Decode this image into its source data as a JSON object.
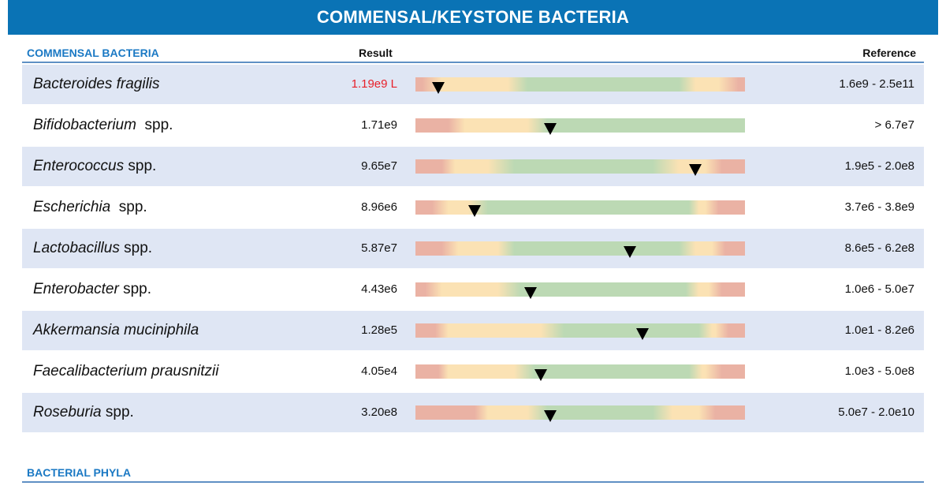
{
  "banner": {
    "title": "COMMENSAL/KEYSTONE BACTERIA"
  },
  "section": {
    "title": "COMMENSAL BACTERIA",
    "result_header": "Result",
    "reference_header": "Reference"
  },
  "rows": [
    {
      "genus": "Bacteroides fragilis",
      "suffix": "",
      "result": "1.19e9 L",
      "flag": "low",
      "reference": "1.6e9 - 2.5e11",
      "gauge_level": 0.07,
      "zones": [
        [
          "red",
          0,
          0.02
        ],
        [
          "yellow",
          0.08,
          0.28
        ],
        [
          "green",
          0.34,
          0.8
        ],
        [
          "yellow",
          0.85,
          0.92
        ],
        [
          "red",
          0.98,
          1
        ]
      ]
    },
    {
      "genus": "Bifidobacterium",
      "suffix": "  spp.",
      "result": "1.71e9",
      "flag": "",
      "reference": "> 6.7e7",
      "gauge_level": 0.41,
      "zones": [
        [
          "red",
          0,
          0.1
        ],
        [
          "yellow",
          0.15,
          0.34
        ],
        [
          "green",
          0.4,
          1
        ]
      ]
    },
    {
      "genus": "Enterococcus",
      "suffix": " spp.",
      "result": "9.65e7",
      "flag": "",
      "reference": "1.9e5 - 2.0e8",
      "gauge_level": 0.85,
      "zones": [
        [
          "red",
          0,
          0.08
        ],
        [
          "yellow",
          0.12,
          0.22
        ],
        [
          "green",
          0.3,
          0.72
        ],
        [
          "yellow",
          0.8,
          0.88
        ],
        [
          "red",
          0.93,
          1
        ]
      ]
    },
    {
      "genus": "Escherichia",
      "suffix": "  spp.",
      "result": "8.96e6",
      "flag": "",
      "reference": "3.7e6 - 3.8e9",
      "gauge_level": 0.18,
      "zones": [
        [
          "red",
          0,
          0.05
        ],
        [
          "yellow",
          0.1,
          0.16
        ],
        [
          "green",
          0.22,
          0.83
        ],
        [
          "yellow",
          0.86,
          0.88
        ],
        [
          "red",
          0.92,
          1
        ]
      ]
    },
    {
      "genus": "Lactobacillus",
      "suffix": " spp.",
      "result": "5.87e7",
      "flag": "",
      "reference": "8.6e5 - 6.2e8",
      "gauge_level": 0.65,
      "zones": [
        [
          "red",
          0,
          0.08
        ],
        [
          "yellow",
          0.13,
          0.25
        ],
        [
          "green",
          0.3,
          0.8
        ],
        [
          "yellow",
          0.85,
          0.9
        ],
        [
          "red",
          0.94,
          1
        ]
      ]
    },
    {
      "genus": "Enterobacter",
      "suffix": " spp.",
      "result": "4.43e6",
      "flag": "",
      "reference": "1.0e6 - 5.0e7",
      "gauge_level": 0.35,
      "zones": [
        [
          "red",
          0,
          0.03
        ],
        [
          "yellow",
          0.08,
          0.25
        ],
        [
          "green",
          0.32,
          0.82
        ],
        [
          "yellow",
          0.86,
          0.89
        ],
        [
          "red",
          0.93,
          1
        ]
      ]
    },
    {
      "genus": "Akkermansia muciniphila",
      "suffix": "",
      "result": "1.28e5",
      "flag": "",
      "reference": "1.0e1 - 8.2e6",
      "gauge_level": 0.69,
      "zones": [
        [
          "red",
          0,
          0.06
        ],
        [
          "yellow",
          0.1,
          0.38
        ],
        [
          "green",
          0.45,
          0.86
        ],
        [
          "yellow",
          0.9,
          0.91
        ],
        [
          "red",
          0.95,
          1
        ]
      ]
    },
    {
      "genus": "Faecalibacterium prausnitzii",
      "suffix": "",
      "result": "4.05e4",
      "flag": "",
      "reference": "1.0e3 - 5.0e8",
      "gauge_level": 0.38,
      "zones": [
        [
          "red",
          0,
          0.07
        ],
        [
          "yellow",
          0.1,
          0.3
        ],
        [
          "green",
          0.36,
          0.83
        ],
        [
          "yellow",
          0.87,
          0.88
        ],
        [
          "red",
          0.93,
          1
        ]
      ]
    },
    {
      "genus": "Roseburia",
      "suffix": " spp.",
      "result": "3.20e8",
      "flag": "",
      "reference": "5.0e7 - 2.0e10",
      "gauge_level": 0.41,
      "zones": [
        [
          "red",
          0,
          0.18
        ],
        [
          "yellow",
          0.22,
          0.34
        ],
        [
          "green",
          0.4,
          0.72
        ],
        [
          "yellow",
          0.78,
          0.86
        ],
        [
          "red",
          0.91,
          1
        ]
      ]
    }
  ],
  "section2": {
    "title": "BACTERIAL PHYLA"
  },
  "colors": {
    "banner": "#0a73b5",
    "section_title": "#1b79c4",
    "low_flag": "#e8202a",
    "red": "#eab2a4",
    "yellow": "#fbe2b4",
    "green": "#bcd9b4",
    "row_shade": "#dfe6f4"
  }
}
